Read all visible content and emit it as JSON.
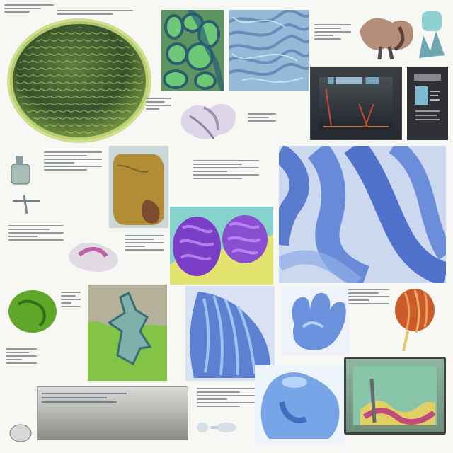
{
  "collage": {
    "background": "#f7f7f4",
    "accent_colors": {
      "green": "#6f9b3c",
      "blue": "#4d71d8",
      "purple": "#7448c8",
      "orange": "#cf5f2d",
      "gray": "#9c9c99"
    }
  }
}
